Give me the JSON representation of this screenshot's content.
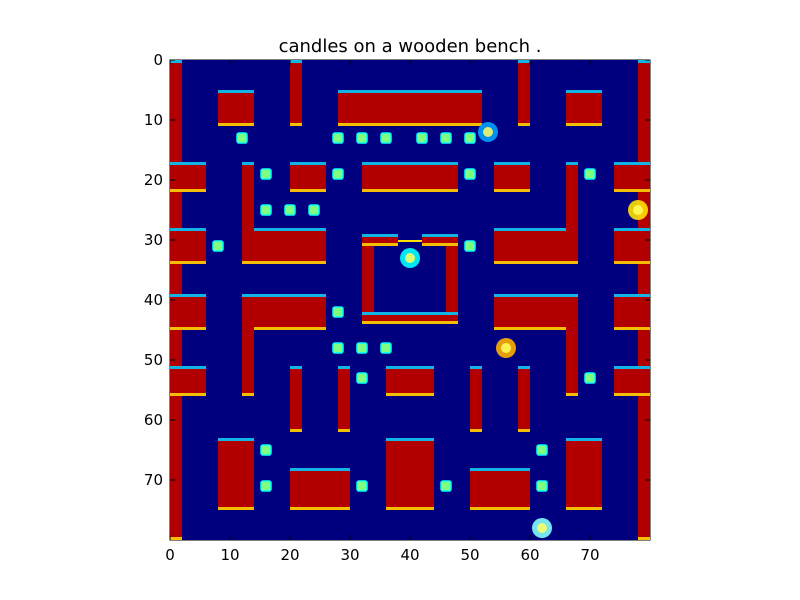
{
  "title": "candles on a wooden bench .",
  "axes": {
    "x_ticks": [
      "0",
      "10",
      "20",
      "30",
      "40",
      "50",
      "60",
      "70"
    ],
    "y_ticks": [
      "0",
      "10",
      "20",
      "30",
      "40",
      "50",
      "60",
      "70"
    ],
    "x_range": [
      0,
      80
    ],
    "y_range": [
      0,
      80
    ],
    "y_inverted": true
  },
  "colors": {
    "background": "#00007f",
    "wall": "#b20000",
    "wall_edge_light": "#00c8ff",
    "wall_edge_yellow": "#ffe000",
    "pellet": "#7fff7f",
    "ghost_door": "#ffe000"
  },
  "game": {
    "walls": [
      {
        "name": "left-border",
        "x": 0,
        "y": 0,
        "w": 2,
        "h": 80
      },
      {
        "name": "right-border",
        "x": 78,
        "y": 0,
        "w": 2,
        "h": 80
      },
      {
        "name": "top-left-block",
        "x": 8,
        "y": 5,
        "w": 6,
        "h": 6
      },
      {
        "name": "upper-pillar-left",
        "x": 20,
        "y": 0,
        "w": 2,
        "h": 11
      },
      {
        "name": "top-center-bar",
        "x": 28,
        "y": 5,
        "w": 24,
        "h": 6
      },
      {
        "name": "upper-pillar-right",
        "x": 58,
        "y": 0,
        "w": 2,
        "h": 11
      },
      {
        "name": "top-right-block",
        "x": 66,
        "y": 5,
        "w": 6,
        "h": 6
      },
      {
        "name": "left-side-stub",
        "x": 0,
        "y": 17,
        "w": 6,
        "h": 5
      },
      {
        "name": "left-vertical-1",
        "x": 12,
        "y": 17,
        "w": 2,
        "h": 17
      },
      {
        "name": "upper-left-small",
        "x": 20,
        "y": 17,
        "w": 6,
        "h": 5
      },
      {
        "name": "upper-center-block",
        "x": 32,
        "y": 17,
        "w": 16,
        "h": 5
      },
      {
        "name": "upper-right-small",
        "x": 54,
        "y": 17,
        "w": 6,
        "h": 5
      },
      {
        "name": "right-vertical-1",
        "x": 66,
        "y": 17,
        "w": 2,
        "h": 17
      },
      {
        "name": "right-side-stub",
        "x": 74,
        "y": 17,
        "w": 6,
        "h": 5
      },
      {
        "name": "mid-left-bar",
        "x": 14,
        "y": 28,
        "w": 12,
        "h": 6
      },
      {
        "name": "mid-right-bar",
        "x": 54,
        "y": 28,
        "w": 12,
        "h": 6
      },
      {
        "name": "left-mid-block",
        "x": 0,
        "y": 28,
        "w": 6,
        "h": 6
      },
      {
        "name": "right-mid-block",
        "x": 74,
        "y": 28,
        "w": 6,
        "h": 6
      },
      {
        "name": "ghost-house-left",
        "x": 32,
        "y": 29,
        "w": 2,
        "h": 15
      },
      {
        "name": "ghost-house-right",
        "x": 46,
        "y": 29,
        "w": 2,
        "h": 15
      },
      {
        "name": "ghost-house-bottom",
        "x": 32,
        "y": 42,
        "w": 16,
        "h": 2
      },
      {
        "name": "ghost-house-top-left",
        "x": 32,
        "y": 29,
        "w": 6,
        "h": 2
      },
      {
        "name": "ghost-house-top-right",
        "x": 42,
        "y": 29,
        "w": 6,
        "h": 2
      },
      {
        "name": "left-lower-side",
        "x": 0,
        "y": 39,
        "w": 6,
        "h": 6
      },
      {
        "name": "center-left-block",
        "x": 12,
        "y": 39,
        "w": 14,
        "h": 6
      },
      {
        "name": "center-left-vertical",
        "x": 12,
        "y": 39,
        "w": 2,
        "h": 17
      },
      {
        "name": "center-right-block",
        "x": 54,
        "y": 39,
        "w": 14,
        "h": 6
      },
      {
        "name": "center-right-vertical",
        "x": 66,
        "y": 39,
        "w": 2,
        "h": 17
      },
      {
        "name": "right-lower-side",
        "x": 74,
        "y": 39,
        "w": 6,
        "h": 6
      },
      {
        "name": "lower-left-side",
        "x": 0,
        "y": 51,
        "w": 6,
        "h": 5
      },
      {
        "name": "lower-pillar-left",
        "x": 20,
        "y": 51,
        "w": 2,
        "h": 11
      },
      {
        "name": "lower-pillar-center-left",
        "x": 28,
        "y": 51,
        "w": 2,
        "h": 11
      },
      {
        "name": "lower-center-block",
        "x": 36,
        "y": 51,
        "w": 8,
        "h": 5
      },
      {
        "name": "lower-pillar-center-right",
        "x": 50,
        "y": 51,
        "w": 2,
        "h": 11
      },
      {
        "name": "lower-pillar-right",
        "x": 58,
        "y": 51,
        "w": 2,
        "h": 11
      },
      {
        "name": "lower-right-side",
        "x": 74,
        "y": 51,
        "w": 6,
        "h": 5
      },
      {
        "name": "bottom-left-block",
        "x": 8,
        "y": 63,
        "w": 6,
        "h": 12
      },
      {
        "name": "bottom-left-l",
        "x": 20,
        "y": 68,
        "w": 10,
        "h": 7
      },
      {
        "name": "bottom-center-block",
        "x": 36,
        "y": 63,
        "w": 8,
        "h": 12
      },
      {
        "name": "bottom-right-l",
        "x": 50,
        "y": 68,
        "w": 10,
        "h": 7
      },
      {
        "name": "bottom-right-block",
        "x": 66,
        "y": 63,
        "w": 6,
        "h": 12
      }
    ],
    "pellets": [
      [
        12,
        13
      ],
      [
        16,
        19
      ],
      [
        16,
        25
      ],
      [
        20,
        25
      ],
      [
        24,
        25
      ],
      [
        28,
        13
      ],
      [
        28,
        19
      ],
      [
        32,
        13
      ],
      [
        36,
        13
      ],
      [
        42,
        13
      ],
      [
        46,
        13
      ],
      [
        50,
        13
      ],
      [
        50,
        19
      ],
      [
        70,
        19
      ],
      [
        8,
        31
      ],
      [
        50,
        31
      ],
      [
        28,
        42
      ],
      [
        28,
        48
      ],
      [
        32,
        48
      ],
      [
        36,
        48
      ],
      [
        32,
        53
      ],
      [
        70,
        53
      ],
      [
        16,
        65
      ],
      [
        16,
        71
      ],
      [
        32,
        71
      ],
      [
        46,
        71
      ],
      [
        62,
        65
      ],
      [
        62,
        71
      ]
    ],
    "sprites": [
      {
        "name": "ghost-in-house",
        "x": 40,
        "y": 33,
        "color": "#00ffff"
      },
      {
        "name": "ghost-near-right",
        "x": 56,
        "y": 48,
        "color": "#ffb000"
      },
      {
        "name": "player",
        "x": 62,
        "y": 78,
        "color": "#80ffff"
      },
      {
        "name": "ghost-top-right",
        "x": 53,
        "y": 12,
        "color": "#00a0ff"
      },
      {
        "name": "ghost-right-edge",
        "x": 78,
        "y": 25,
        "color": "#ffe000"
      }
    ]
  }
}
